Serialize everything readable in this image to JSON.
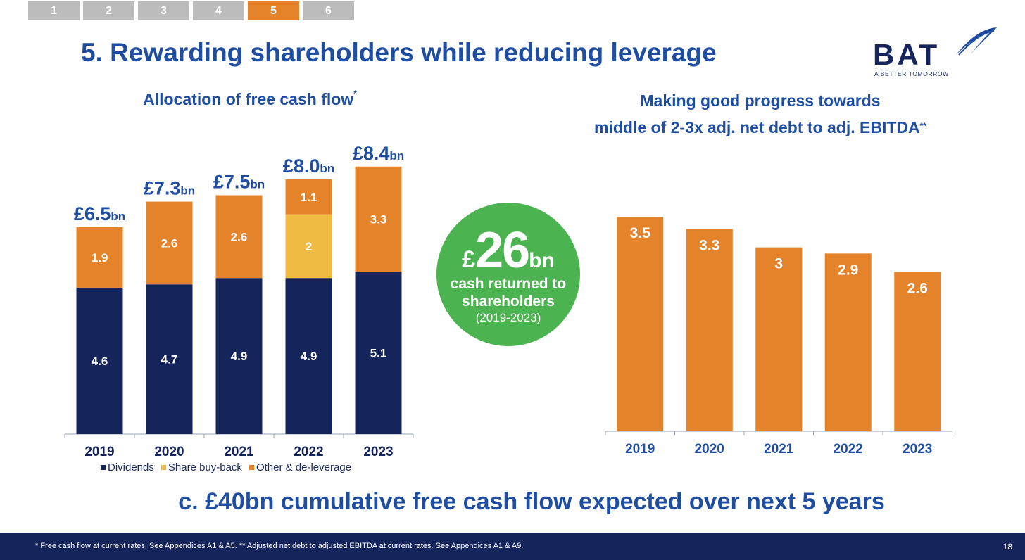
{
  "nav": {
    "tabs": [
      "1",
      "2",
      "3",
      "4",
      "5",
      "6"
    ],
    "active_index": 4
  },
  "title": "5. Rewarding shareholders while reducing leverage",
  "logo": {
    "text": "BAT",
    "tagline": "A BETTER TOMORROW"
  },
  "left_chart": {
    "title": "Allocation of free cash flow",
    "title_mark": "*"
  },
  "right_chart": {
    "title_line1": "Making good progress towards",
    "title_line2": "middle of 2-3x adj. net debt to adj. EBITDA",
    "title_mark": "**"
  },
  "callout": {
    "currency": "£",
    "amount": "26",
    "unit": "bn",
    "line1": "cash returned to",
    "line2": "shareholders",
    "years": "(2019-2023)"
  },
  "legend": [
    {
      "label": "Dividends",
      "color": "#15245a"
    },
    {
      "label": "Share buy-back",
      "color": "#f0bb42"
    },
    {
      "label": "Other & de-leverage",
      "color": "#e5832a"
    }
  ],
  "bottom_claim": "c. £40bn cumulative free cash flow expected over next 5 years",
  "footer": {
    "footnote": "* Free cash flow at current rates. See Appendices A1 & A5. ** Adjusted net debt to adjusted EBITDA at current rates. See Appendices A1 & A9.",
    "page": "18"
  },
  "chart_data": [
    {
      "type": "bar",
      "stacked": true,
      "title": "Allocation of free cash flow",
      "categories": [
        "2019",
        "2020",
        "2021",
        "2022",
        "2023"
      ],
      "series": [
        {
          "name": "Dividends",
          "color": "#15245a",
          "values": [
            4.6,
            4.7,
            4.9,
            4.9,
            5.1
          ]
        },
        {
          "name": "Share buy-back",
          "color": "#f0bb42",
          "values": [
            0,
            0,
            0,
            2.0,
            0
          ]
        },
        {
          "name": "Other & de-leverage",
          "color": "#e5832a",
          "values": [
            1.9,
            2.6,
            2.6,
            1.1,
            3.3
          ]
        }
      ],
      "totals": [
        {
          "currency": "£",
          "value": "6.5",
          "unit": "bn"
        },
        {
          "currency": "£",
          "value": "7.3",
          "unit": "bn"
        },
        {
          "currency": "£",
          "value": "7.5",
          "unit": "bn"
        },
        {
          "currency": "£",
          "value": "8.0",
          "unit": "bn"
        },
        {
          "currency": "£",
          "value": "8.4",
          "unit": "bn"
        }
      ],
      "ylim": [
        0,
        9
      ]
    },
    {
      "type": "bar",
      "title": "Making good progress towards middle of 2-3x adj. net debt to adj. EBITDA",
      "categories": [
        "2019",
        "2020",
        "2021",
        "2022",
        "2023"
      ],
      "values": [
        3.5,
        3.3,
        3.0,
        2.9,
        2.6
      ],
      "color": "#e5832a",
      "ylim": [
        0,
        3.65
      ]
    }
  ]
}
